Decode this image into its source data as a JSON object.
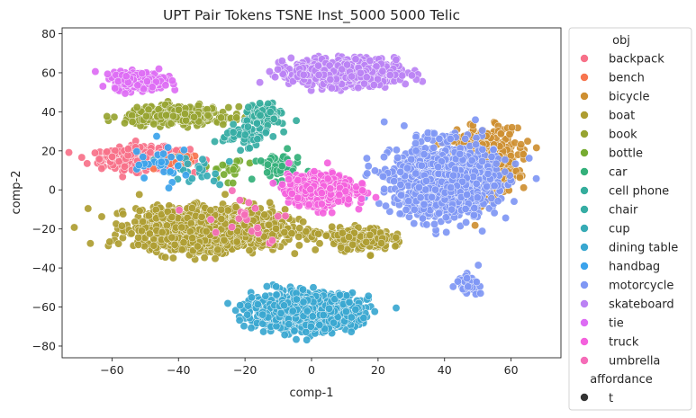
{
  "chart_data": {
    "type": "scatter",
    "title": "UPT Pair Tokens TSNE Inst_5000 5000 Telic",
    "xlabel": "comp-1",
    "ylabel": "comp-2",
    "xlim": [
      -75,
      75
    ],
    "ylim": [
      -86,
      83
    ],
    "xticks": [
      -60,
      -40,
      -20,
      0,
      20,
      40,
      60
    ],
    "yticks": [
      -80,
      -60,
      -40,
      -20,
      0,
      20,
      40,
      60,
      80
    ],
    "grid": false,
    "legend_placement": "outside-right",
    "legend": {
      "hue_title": "obj",
      "style_title": "affordance",
      "style_entries": [
        {
          "label": "t",
          "color": "#333333"
        }
      ]
    },
    "series": [
      {
        "name": "backpack",
        "color": "#f77189",
        "clusters": [
          {
            "cx": -50,
            "cy": 16,
            "sx": 12,
            "sy": 5,
            "n": 420
          }
        ]
      },
      {
        "name": "bench",
        "color": "#f7754f",
        "clusters": [
          {
            "cx": -40,
            "cy": 15,
            "sx": 6,
            "sy": 3,
            "n": 25
          }
        ]
      },
      {
        "name": "bicycle",
        "color": "#ce8f31",
        "clusters": [
          {
            "cx": 52,
            "cy": 15,
            "sx": 9,
            "sy": 15,
            "n": 550
          }
        ]
      },
      {
        "name": "boat",
        "color": "#ae9d31",
        "clusters": [
          {
            "cx": -30,
            "cy": -20,
            "sx": 20,
            "sy": 9,
            "n": 1500
          },
          {
            "cx": 15,
            "cy": -25,
            "sx": 8,
            "sy": 5,
            "n": 250
          }
        ]
      },
      {
        "name": "book",
        "color": "#97a431",
        "clusters": [
          {
            "cx": -40,
            "cy": 38,
            "sx": 14,
            "sy": 4,
            "n": 380
          }
        ]
      },
      {
        "name": "bottle",
        "color": "#77ab31",
        "clusters": [
          {
            "cx": -25,
            "cy": 10,
            "sx": 5,
            "sy": 5,
            "n": 20
          }
        ]
      },
      {
        "name": "car",
        "color": "#33b07a",
        "clusters": [
          {
            "cx": -10,
            "cy": 12,
            "sx": 6,
            "sy": 6,
            "n": 60
          }
        ]
      },
      {
        "name": "cell phone",
        "color": "#35ad9c",
        "clusters": [
          {
            "cx": -14,
            "cy": 38,
            "sx": 4,
            "sy": 5,
            "n": 140
          }
        ]
      },
      {
        "name": "chair",
        "color": "#36ada4",
        "clusters": [
          {
            "cx": -20,
            "cy": 28,
            "sx": 6,
            "sy": 5,
            "n": 90
          }
        ]
      },
      {
        "name": "cup",
        "color": "#37abb5",
        "clusters": [
          {
            "cx": -35,
            "cy": 10,
            "sx": 10,
            "sy": 8,
            "n": 25
          }
        ]
      },
      {
        "name": "dining table",
        "color": "#39a7d0",
        "clusters": [
          {
            "cx": -2,
            "cy": -62,
            "sx": 14,
            "sy": 8,
            "n": 1300
          }
        ]
      },
      {
        "name": "handbag",
        "color": "#3ba3ec",
        "clusters": [
          {
            "cx": -45,
            "cy": 12,
            "sx": 10,
            "sy": 10,
            "n": 30
          }
        ]
      },
      {
        "name": "motorcycle",
        "color": "#7f97f4",
        "clusters": [
          {
            "cx": 40,
            "cy": 5,
            "sx": 14,
            "sy": 17,
            "n": 1100
          },
          {
            "cx": 47,
            "cy": -48,
            "sx": 3,
            "sy": 4,
            "n": 60
          }
        ]
      },
      {
        "name": "skateboard",
        "color": "#bb82f4",
        "clusters": [
          {
            "cx": 10,
            "cy": 60,
            "sx": 14,
            "sy": 6,
            "n": 1000
          }
        ]
      },
      {
        "name": "tie",
        "color": "#dd6cf4",
        "clusters": [
          {
            "cx": -52,
            "cy": 56,
            "sx": 7,
            "sy": 4,
            "n": 300
          }
        ]
      },
      {
        "name": "truck",
        "color": "#f461dd",
        "clusters": [
          {
            "cx": 3,
            "cy": 0,
            "sx": 9,
            "sy": 7,
            "n": 600
          }
        ]
      },
      {
        "name": "umbrella",
        "color": "#f56cb8",
        "clusters": [
          {
            "cx": -20,
            "cy": -15,
            "sx": 15,
            "sy": 15,
            "n": 20
          }
        ]
      }
    ]
  }
}
